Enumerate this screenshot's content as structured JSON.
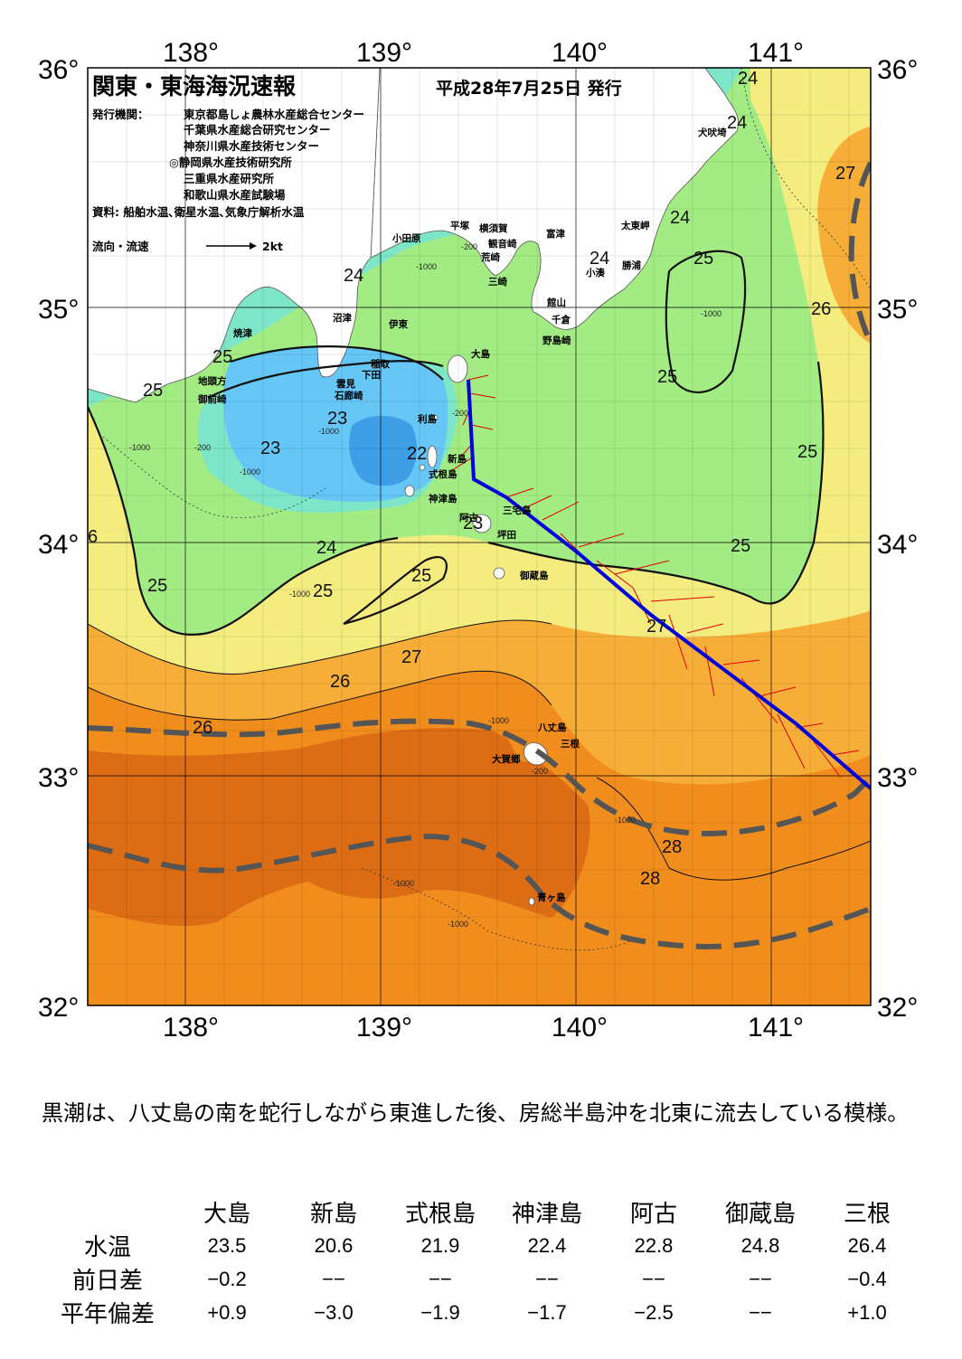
{
  "header": {
    "title": "関東・東海海況速報",
    "date": "平成28年7月25日 発行"
  },
  "publisher": {
    "label": "発行機関：",
    "orgs": [
      "東京都島しょ農林水産総合センター",
      "千葉県水産総合研究センター",
      "神奈川県水産技術センター",
      "◎静岡県水産技術研究所",
      "三重県水産研究所",
      "和歌山県水産試験場"
    ],
    "source": "資料: 船舶水温､衛星水温､気象庁解析水温"
  },
  "legend": {
    "flow_label": "流向・流速",
    "scale_label": "2kt"
  },
  "axes": {
    "lon_labels": [
      "138°",
      "139°",
      "140°",
      "141°"
    ],
    "lat_labels": [
      "36°",
      "35°",
      "34°",
      "33°",
      "32°"
    ]
  },
  "isotherm_labels": {
    "t22": "22",
    "t23": "23",
    "t24": "24",
    "t25": "25",
    "t26": "26",
    "t27": "27",
    "t28": "28",
    "t6": "6"
  },
  "depth_labels": {
    "d200": "-200",
    "d1000": "-1000"
  },
  "places": {
    "inubozaki": "犬吠埼",
    "taitomisaki": "太東岬",
    "katsuura": "勝浦",
    "kominato": "小湊",
    "futtsu": "富津",
    "yokosuka": "横須賀",
    "kannonzaki": "観音崎",
    "hiratsuka": "平塚",
    "odawara": "小田原",
    "araizaki": "荒崎",
    "misaki": "三崎",
    "tateyama": "館山",
    "chikura": "千倉",
    "nojimazaki": "野島崎",
    "numazu": "沼津",
    "ito": "伊東",
    "inatori": "稲取",
    "shimoda": "下田",
    "mikomoto": "雲見",
    "irozaki": "石廊崎",
    "yaizu": "焼津",
    "jitogata": "地頭方",
    "omaezaki": "御前崎",
    "oshima": "大島",
    "toshima": "利島",
    "niijima": "新島",
    "shikinejima": "式根島",
    "kozushima": "神津島",
    "miyakejima": "三宅島",
    "ako": "阿古",
    "tsubota": "坪田",
    "mikurajima": "御蔵島",
    "hachijojima": "八丈島",
    "mine": "三根",
    "okago": "大賀郷",
    "aogashima": "青ヶ島"
  },
  "summary": "黒潮は、八丈島の南を蛇行しながら東進した後、房総半島沖を北東に流去している模様。",
  "table": {
    "columns": [
      "大島",
      "新島",
      "式根島",
      "神津島",
      "阿古",
      "御蔵島",
      "三根"
    ],
    "rows": [
      {
        "label": "水温",
        "values": [
          "23.5",
          "20.6",
          "21.9",
          "22.4",
          "22.8",
          "24.8",
          "26.4"
        ]
      },
      {
        "label": "前日差",
        "values": [
          "−0.2",
          "−−",
          "−−",
          "−−",
          "−−",
          "−−",
          "−0.4"
        ]
      },
      {
        "label": "平年偏差",
        "values": [
          "+0.9",
          "−3.0",
          "−1.9",
          "−1.7",
          "−2.5",
          "−−",
          "+1.0"
        ]
      }
    ]
  },
  "colors": {
    "t22": "#3f9fe6",
    "t23": "#66c6f5",
    "t24": "#7de6c8",
    "t25": "#a3ec84",
    "t26": "#f5ec80",
    "t27": "#f7ae38",
    "t28": "#f08d1d",
    "t29": "#dd6d14",
    "land": "#ffffff",
    "kuroshio_axis": "#555555",
    "ship_track": "#0000dd",
    "current_vectors": "#e00000"
  }
}
